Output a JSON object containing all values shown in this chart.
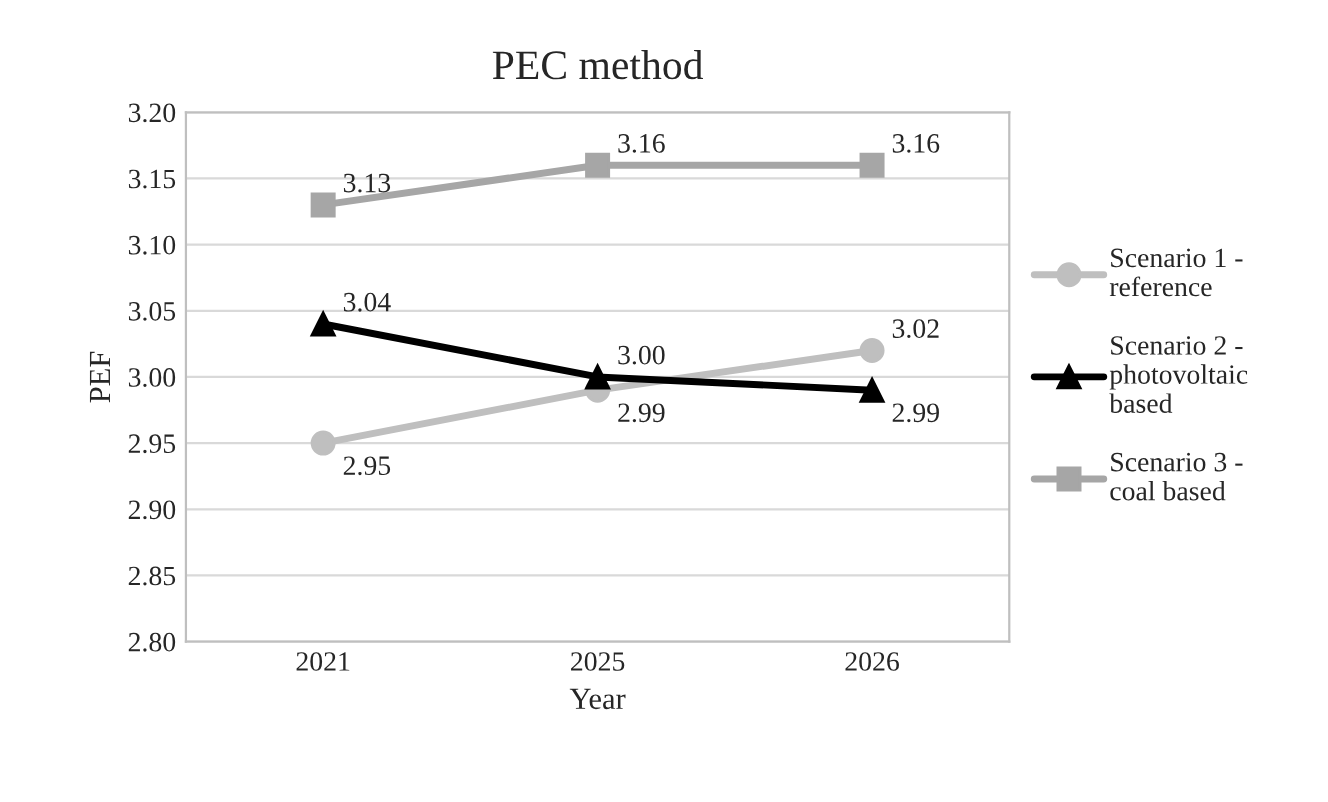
{
  "chart_data": {
    "type": "line",
    "title": "PEC method",
    "xlabel": "Year",
    "ylabel": "PEF",
    "categories": [
      "2021",
      "2025",
      "2026"
    ],
    "series": [
      {
        "name": "Scenario 1 -\nreference",
        "color": "#bfbfbf",
        "marker": "circle",
        "values": [
          2.95,
          2.99,
          3.02
        ],
        "value_labels": [
          "2.95",
          "2.99",
          "3.02"
        ]
      },
      {
        "name": "Scenario 2 -\nphotovoltaic\nbased",
        "color": "#000000",
        "marker": "triangle",
        "values": [
          3.04,
          3.0,
          2.99
        ],
        "value_labels": [
          "3.04",
          "3.00",
          "2.99"
        ]
      },
      {
        "name": "Scenario 3 -\ncoal based",
        "color": "#a6a6a6",
        "marker": "square",
        "values": [
          3.13,
          3.16,
          3.16
        ],
        "value_labels": [
          "3.13",
          "3.16",
          "3.16"
        ]
      }
    ],
    "ylim": [
      2.8,
      3.2
    ],
    "yticks": [
      {
        "value": 2.8,
        "label": "2.80"
      },
      {
        "value": 2.85,
        "label": "2.85"
      },
      {
        "value": 2.9,
        "label": "2.90"
      },
      {
        "value": 2.95,
        "label": "2.95"
      },
      {
        "value": 3.0,
        "label": "3.00"
      },
      {
        "value": 3.05,
        "label": "3.05"
      },
      {
        "value": 3.1,
        "label": "3.10"
      },
      {
        "value": 3.15,
        "label": "3.15"
      },
      {
        "value": 3.2,
        "label": "3.20"
      }
    ],
    "grid": "y",
    "legend": "right",
    "line_style": "solid"
  }
}
